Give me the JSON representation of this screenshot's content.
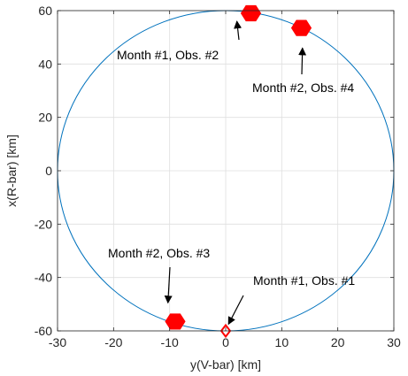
{
  "chart_data": {
    "type": "scatter",
    "xlabel": "y(V-bar) [km]",
    "ylabel": "x(R-bar) [km]",
    "xlim": [
      -30,
      30
    ],
    "ylim": [
      -60,
      60
    ],
    "xticks": [
      -30,
      -20,
      -10,
      0,
      10,
      20,
      30
    ],
    "yticks": [
      -60,
      -40,
      -20,
      0,
      20,
      40,
      60
    ],
    "grid": true,
    "orbit": {
      "shape": "ellipse",
      "center": [
        0,
        0
      ],
      "semi_axis_y": 30,
      "semi_axis_x": 60,
      "color": "#0072BD"
    },
    "markers": [
      {
        "label": "Month #1, Obs. #1",
        "x": 0,
        "y": -60,
        "marker": "diamond-open",
        "color": "#FF0000"
      },
      {
        "label": "Month #1, Obs. #2",
        "x": 4.5,
        "y": 59,
        "marker": "hexagon-filled",
        "color": "#FF0000"
      },
      {
        "label": "Month #2, Obs. #3",
        "x": -9,
        "y": -56.5,
        "marker": "hexagon-filled",
        "color": "#FF0000"
      },
      {
        "label": "Month #2, Obs. #4",
        "x": 13.5,
        "y": 53.5,
        "marker": "hexagon-filled",
        "color": "#FF0000"
      }
    ],
    "annotations": [
      {
        "text": "Month #1, Obs. #1",
        "text_at": [
          0,
          -60
        ],
        "arrow_to": [
          0.5,
          -57.5
        ]
      },
      {
        "text": "Month #1, Obs. #2",
        "text_at": [
          4.5,
          59
        ],
        "arrow_to": [
          2,
          56
        ]
      },
      {
        "text": "Month #2, Obs. #3",
        "text_at": [
          -9,
          -56.5
        ],
        "arrow_to": [
          -10.3,
          -49.5
        ]
      },
      {
        "text": "Month #2, Obs. #4",
        "text_at": [
          13.5,
          53.5
        ],
        "arrow_to": [
          13.7,
          46
        ]
      }
    ]
  }
}
